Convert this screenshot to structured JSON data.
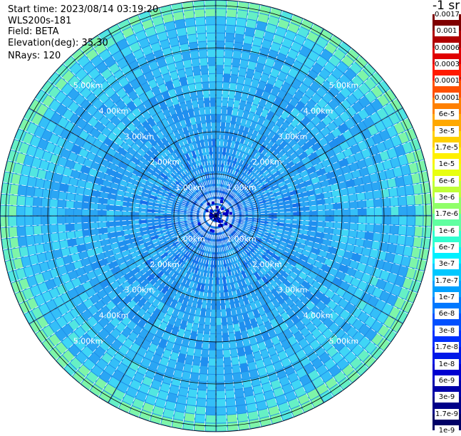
{
  "info": {
    "start_time": "Start time: 2023/08/14 03:19:20",
    "instrument": "WLS200s-181",
    "field": "Field: BETA",
    "elevation": "Elevation(deg): 35.30",
    "nrays": "NRays: 120"
  },
  "range_rings": {
    "labels": [
      "1.00km",
      "2.00km",
      "3.00km",
      "4.00km",
      "5.00km"
    ],
    "values_km": [
      1,
      2,
      3,
      4,
      5
    ]
  },
  "colorbar": {
    "units": "-1 sr",
    "ticks": [
      "0.0017",
      "0.001",
      "0.0006",
      "0.0003",
      "0.00017",
      "0.0001",
      "6e-5",
      "3e-5",
      "1.7e-5",
      "1e-5",
      "6e-6",
      "3e-6",
      "1.7e-6",
      "1e-6",
      "6e-7",
      "3e-7",
      "1.7e-7",
      "1e-7",
      "6e-8",
      "3e-8",
      "1.7e-8",
      "1e-8",
      "6e-9",
      "3e-9",
      "1.7e-9",
      "1e-9"
    ],
    "colors": [
      "#7f0000",
      "#b00000",
      "#e00000",
      "#ff1a00",
      "#ff5000",
      "#ff8000",
      "#ffa800",
      "#ffd000",
      "#fff000",
      "#e8ff10",
      "#c0ff38",
      "#90ff68",
      "#60ffa0",
      "#30ffd0",
      "#00f0ff",
      "#00c8ff",
      "#00a0ff",
      "#0078ff",
      "#0050ff",
      "#0030ff",
      "#0018e8",
      "#0000d0",
      "#0000a8",
      "#000088",
      "#000066"
    ]
  },
  "plot": {
    "type": "ppi-scan",
    "rays": 120
  }
}
